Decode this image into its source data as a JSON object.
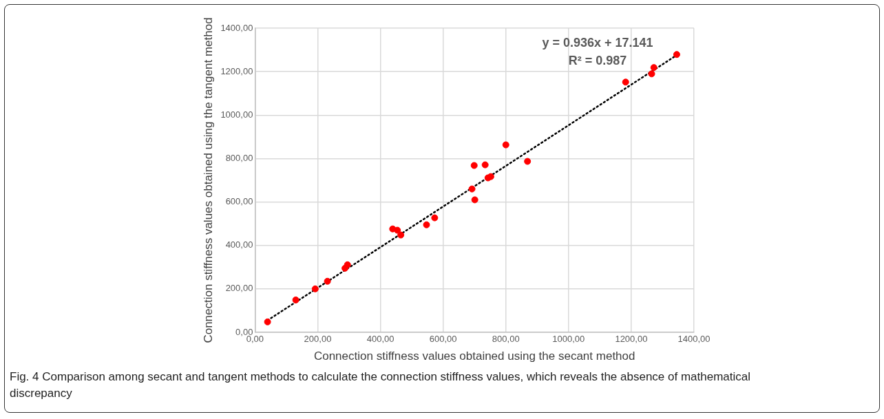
{
  "chart_data": {
    "type": "scatter",
    "xlabel": "Connection stiffness values obtained using the secant method",
    "ylabel": "Connection stiffness values obtained using the tangent method",
    "xlim": [
      0,
      1400
    ],
    "ylim": [
      0,
      1400
    ],
    "xticks": [
      {
        "value": 0,
        "label": "0,00"
      },
      {
        "value": 200,
        "label": "200,00"
      },
      {
        "value": 400,
        "label": "400,00"
      },
      {
        "value": 600,
        "label": "600,00"
      },
      {
        "value": 800,
        "label": "800,00"
      },
      {
        "value": 1000,
        "label": "1000,00"
      },
      {
        "value": 1200,
        "label": "1200,00"
      },
      {
        "value": 1400,
        "label": "1400,00"
      }
    ],
    "yticks": [
      {
        "value": 0,
        "label": "0,00"
      },
      {
        "value": 200,
        "label": "200,00"
      },
      {
        "value": 400,
        "label": "400,00"
      },
      {
        "value": 600,
        "label": "600,00"
      },
      {
        "value": 800,
        "label": "800,00"
      },
      {
        "value": 1000,
        "label": "1000,00"
      },
      {
        "value": 1200,
        "label": "1200,00"
      },
      {
        "value": 1400,
        "label": "1400,00"
      }
    ],
    "grid": true,
    "legend": false,
    "marker": "circle",
    "series": [
      {
        "type": "scatter",
        "color": "#ff0000",
        "x": [
          40,
          130,
          192,
          231,
          287,
          295,
          439,
          454,
          465,
          547,
          573,
          692,
          699,
          701,
          734,
          743,
          752,
          800,
          869,
          1182,
          1265,
          1272,
          1345
        ],
        "values": [
          48,
          149,
          200,
          235,
          295,
          311,
          476,
          470,
          448,
          495,
          527,
          660,
          768,
          610,
          771,
          711,
          717,
          863,
          787,
          1152,
          1190,
          1219,
          1279
        ]
      },
      {
        "type": "line",
        "color": "#000000",
        "line_style": "dotted",
        "marker": "none",
        "x": [
          40,
          1345
        ],
        "values": [
          55,
          1276
        ]
      }
    ],
    "annotations": [
      "y = 0.936x + 17.141",
      "R² = 0.987",
      "Fig. 4 Comparison among secant and tangent methods to calculate the connection stiffness values, which reveals the absence of mathematical discrepancy"
    ]
  }
}
